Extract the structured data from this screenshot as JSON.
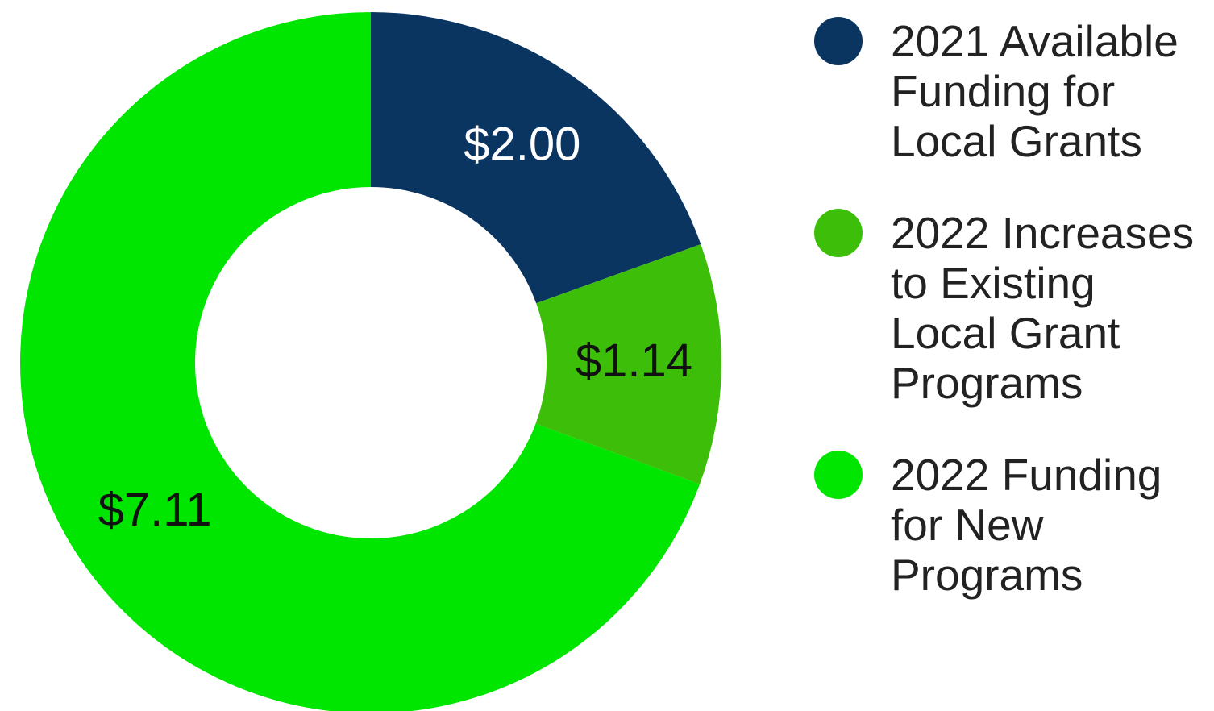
{
  "chart_data": {
    "type": "donut",
    "categories": [
      "2021 Available Funding for Local Grants",
      "2022 Increases to Existing Local Grant Programs",
      "2022 Funding for New Programs"
    ],
    "values": [
      2.0,
      1.14,
      7.11
    ],
    "value_labels": [
      "$2.00",
      "$1.14",
      "$7.11"
    ],
    "colors": [
      "#0b3561",
      "#3dbf0a",
      "#00e600"
    ],
    "legend": "right"
  }
}
